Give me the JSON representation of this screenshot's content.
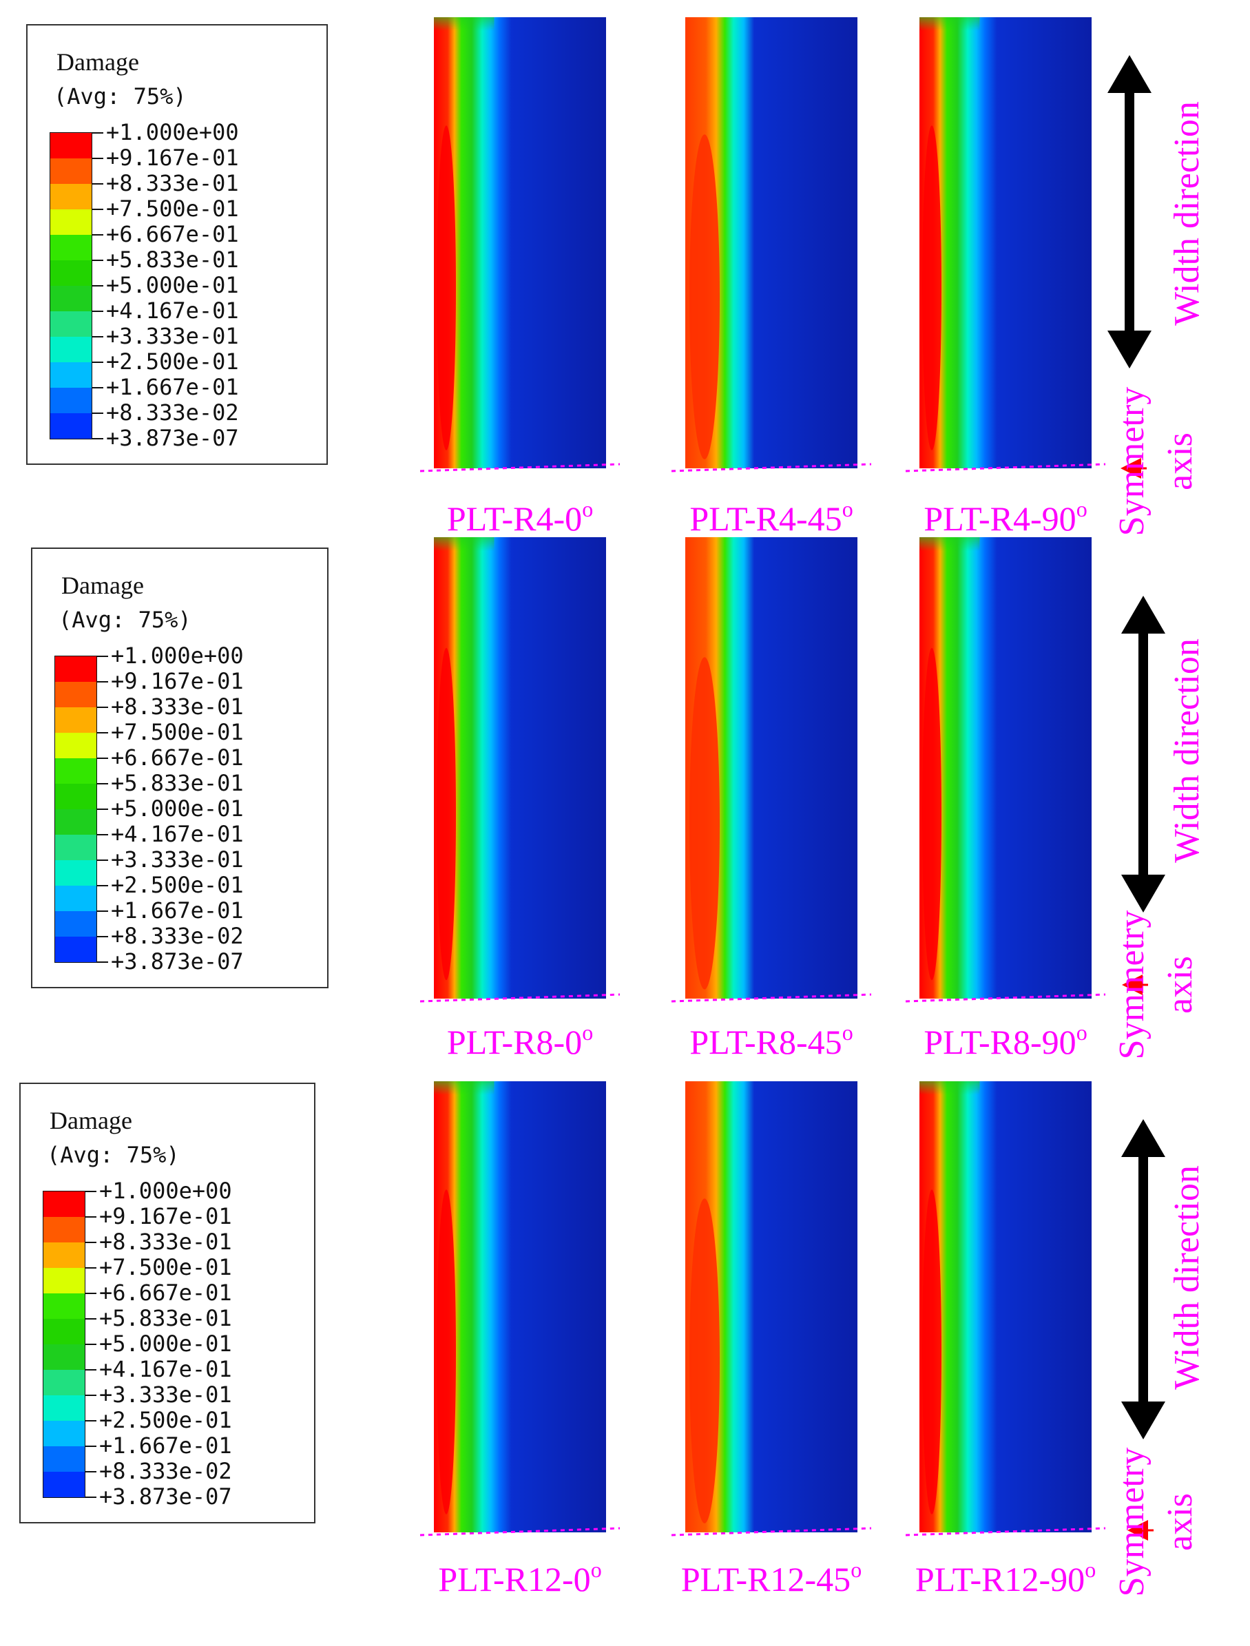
{
  "legend": {
    "title": "Damage",
    "avg": "(Avg: 75%)",
    "values": [
      "+1.000e+00",
      "+9.167e-01",
      "+8.333e-01",
      "+7.500e-01",
      "+6.667e-01",
      "+5.833e-01",
      "+5.000e-01",
      "+4.167e-01",
      "+3.333e-01",
      "+2.500e-01",
      "+1.667e-01",
      "+8.333e-02",
      "+3.873e-07"
    ],
    "colors": [
      "#ff0000",
      "#ff5a00",
      "#ffad00",
      "#d9ff00",
      "#33e600",
      "#22d400",
      "#1ecf1e",
      "#20e080",
      "#00f0c8",
      "#00bcff",
      "#006eff",
      "#0033ff"
    ]
  },
  "panels": [
    {
      "label_pre": "PLT-R4-0",
      "sup": "o"
    },
    {
      "label_pre": "PLT-R4-45",
      "sup": "o"
    },
    {
      "label_pre": "PLT-R4-90",
      "sup": "o"
    },
    {
      "label_pre": "PLT-R8-0",
      "sup": "o"
    },
    {
      "label_pre": "PLT-R8-45",
      "sup": "o"
    },
    {
      "label_pre": "PLT-R8-90",
      "sup": "o"
    },
    {
      "label_pre": "PLT-R12-0",
      "sup": "o"
    },
    {
      "label_pre": "PLT-R12-45",
      "sup": "o"
    },
    {
      "label_pre": "PLT-R12-90",
      "sup": "o"
    }
  ],
  "annotations": {
    "width_direction": "Width direction",
    "symmetry": "Symmetry",
    "axis": "axis"
  },
  "colors": {
    "label": "#ff00ff",
    "arrow": "#000000",
    "symmetry_arrow": "#ff0000",
    "base": "#0a1ea8"
  }
}
